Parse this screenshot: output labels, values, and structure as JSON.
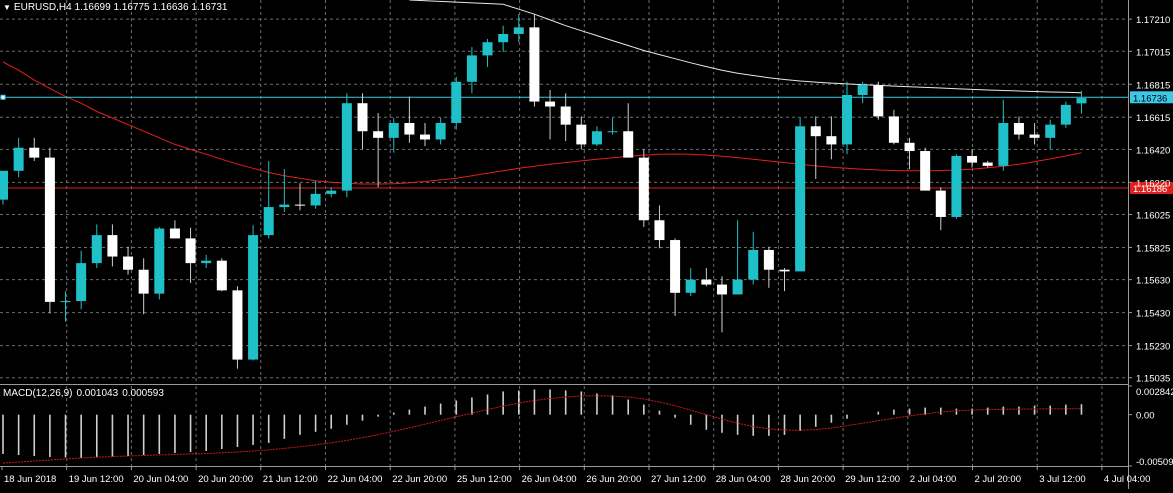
{
  "header": {
    "symbol": "EURUSD,H4",
    "open": "1.16699",
    "high": "1.16775",
    "low": "1.16636",
    "close": "1.16731",
    "menu_icon": "triangle-down-icon"
  },
  "macd_header": {
    "name": "MACD(12,26,9)",
    "main": "0.001043",
    "signal": "0.000593"
  },
  "colors": {
    "background": "#000000",
    "grid": "#6e6e6e",
    "bull": "#20c0c8",
    "bear": "#ffffff",
    "ma_red": "#e0201c",
    "ma_white": "#e8e8e8",
    "hline_cyan": "#3cc8e6",
    "hline_red": "#e0201c",
    "macd_hist": "#cfcfcf",
    "macd_signal": "#d01818"
  },
  "chart_data": {
    "type": "candlestick",
    "symbol": "EURUSD",
    "timeframe": "H4",
    "price_axis_labels": [
      "1.17210",
      "1.17015",
      "1.16815",
      "1.16615",
      "1.16420",
      "1.16220",
      "1.16025",
      "1.15825",
      "1.15630",
      "1.15430",
      "1.15230",
      "1.15035"
    ],
    "price_range": [
      1.15003,
      1.17326
    ],
    "time_axis_labels": [
      "18 Jun 2018",
      "19 Jun 12:00",
      "20 Jun 04:00",
      "20 Jun 20:00",
      "21 Jun 12:00",
      "22 Jun 04:00",
      "22 Jun 20:00",
      "25 Jun 12:00",
      "26 Jun 04:00",
      "26 Jun 20:00",
      "27 Jun 12:00",
      "28 Jun 04:00",
      "28 Jun 20:00",
      "29 Jun 12:00",
      "2 Jul 04:00",
      "2 Jul 20:00",
      "3 Jul 12:00",
      "4 Jul 04:00"
    ],
    "candles": [
      {
        "o": 1.16115,
        "h": 1.1629,
        "l": 1.16085,
        "c": 1.1629
      },
      {
        "o": 1.1629,
        "h": 1.1649,
        "l": 1.1625,
        "c": 1.1643
      },
      {
        "o": 1.1643,
        "h": 1.1649,
        "l": 1.1635,
        "c": 1.1637
      },
      {
        "o": 1.1637,
        "h": 1.1643,
        "l": 1.15425,
        "c": 1.15495
      },
      {
        "o": 1.15495,
        "h": 1.1556,
        "l": 1.15375,
        "c": 1.155
      },
      {
        "o": 1.155,
        "h": 1.15805,
        "l": 1.1545,
        "c": 1.1573
      },
      {
        "o": 1.1573,
        "h": 1.15965,
        "l": 1.157,
        "c": 1.159
      },
      {
        "o": 1.159,
        "h": 1.15965,
        "l": 1.1571,
        "c": 1.1577
      },
      {
        "o": 1.1577,
        "h": 1.1583,
        "l": 1.1566,
        "c": 1.1569
      },
      {
        "o": 1.1569,
        "h": 1.1576,
        "l": 1.1542,
        "c": 1.15545
      },
      {
        "o": 1.15545,
        "h": 1.1595,
        "l": 1.1551,
        "c": 1.1594
      },
      {
        "o": 1.1594,
        "h": 1.1599,
        "l": 1.1588,
        "c": 1.1588
      },
      {
        "o": 1.1588,
        "h": 1.15945,
        "l": 1.1561,
        "c": 1.1573
      },
      {
        "o": 1.1573,
        "h": 1.1578,
        "l": 1.157,
        "c": 1.15745
      },
      {
        "o": 1.15745,
        "h": 1.1576,
        "l": 1.1556,
        "c": 1.15565
      },
      {
        "o": 1.15565,
        "h": 1.1559,
        "l": 1.1509,
        "c": 1.15145
      },
      {
        "o": 1.15145,
        "h": 1.1596,
        "l": 1.1514,
        "c": 1.159
      },
      {
        "o": 1.159,
        "h": 1.1635,
        "l": 1.1588,
        "c": 1.1607
      },
      {
        "o": 1.1607,
        "h": 1.163,
        "l": 1.1604,
        "c": 1.16085
      },
      {
        "o": 1.16085,
        "h": 1.16215,
        "l": 1.1605,
        "c": 1.1608
      },
      {
        "o": 1.1608,
        "h": 1.1623,
        "l": 1.1606,
        "c": 1.1615
      },
      {
        "o": 1.1615,
        "h": 1.1619,
        "l": 1.1613,
        "c": 1.1617
      },
      {
        "o": 1.1617,
        "h": 1.1676,
        "l": 1.1613,
        "c": 1.167
      },
      {
        "o": 1.167,
        "h": 1.1676,
        "l": 1.1642,
        "c": 1.1653
      },
      {
        "o": 1.1653,
        "h": 1.1664,
        "l": 1.1619,
        "c": 1.1649
      },
      {
        "o": 1.1649,
        "h": 1.1661,
        "l": 1.164,
        "c": 1.1658
      },
      {
        "o": 1.1658,
        "h": 1.1674,
        "l": 1.1646,
        "c": 1.1651
      },
      {
        "o": 1.1651,
        "h": 1.1658,
        "l": 1.1644,
        "c": 1.1648
      },
      {
        "o": 1.1648,
        "h": 1.1661,
        "l": 1.1645,
        "c": 1.1658
      },
      {
        "o": 1.1658,
        "h": 1.1686,
        "l": 1.1654,
        "c": 1.1683
      },
      {
        "o": 1.1683,
        "h": 1.1704,
        "l": 1.1676,
        "c": 1.1699
      },
      {
        "o": 1.1699,
        "h": 1.1709,
        "l": 1.1692,
        "c": 1.1707
      },
      {
        "o": 1.1707,
        "h": 1.1717,
        "l": 1.1701,
        "c": 1.1712
      },
      {
        "o": 1.1712,
        "h": 1.1724,
        "l": 1.1707,
        "c": 1.1716
      },
      {
        "o": 1.1716,
        "h": 1.1724,
        "l": 1.1668,
        "c": 1.1671
      },
      {
        "o": 1.1671,
        "h": 1.1678,
        "l": 1.1648,
        "c": 1.1668
      },
      {
        "o": 1.1668,
        "h": 1.1676,
        "l": 1.1647,
        "c": 1.1657
      },
      {
        "o": 1.1657,
        "h": 1.1662,
        "l": 1.1642,
        "c": 1.1645
      },
      {
        "o": 1.1645,
        "h": 1.1656,
        "l": 1.1644,
        "c": 1.1653
      },
      {
        "o": 1.1653,
        "h": 1.1661,
        "l": 1.1651,
        "c": 1.1653
      },
      {
        "o": 1.1653,
        "h": 1.167,
        "l": 1.1637,
        "c": 1.1637
      },
      {
        "o": 1.1637,
        "h": 1.1642,
        "l": 1.1595,
        "c": 1.1599
      },
      {
        "o": 1.1599,
        "h": 1.1608,
        "l": 1.1582,
        "c": 1.1587
      },
      {
        "o": 1.1587,
        "h": 1.1588,
        "l": 1.1541,
        "c": 1.1555
      },
      {
        "o": 1.1555,
        "h": 1.157,
        "l": 1.1553,
        "c": 1.1563
      },
      {
        "o": 1.1563,
        "h": 1.157,
        "l": 1.1559,
        "c": 1.156
      },
      {
        "o": 1.156,
        "h": 1.1565,
        "l": 1.1531,
        "c": 1.1554
      },
      {
        "o": 1.1554,
        "h": 1.1599,
        "l": 1.1554,
        "c": 1.1563
      },
      {
        "o": 1.1563,
        "h": 1.1592,
        "l": 1.156,
        "c": 1.1581
      },
      {
        "o": 1.1581,
        "h": 1.1583,
        "l": 1.1558,
        "c": 1.1569
      },
      {
        "o": 1.1569,
        "h": 1.157,
        "l": 1.1556,
        "c": 1.1568
      },
      {
        "o": 1.1568,
        "h": 1.1661,
        "l": 1.1568,
        "c": 1.1656
      },
      {
        "o": 1.1656,
        "h": 1.1662,
        "l": 1.1624,
        "c": 1.165
      },
      {
        "o": 1.165,
        "h": 1.1662,
        "l": 1.1636,
        "c": 1.1645
      },
      {
        "o": 1.1645,
        "h": 1.1683,
        "l": 1.1639,
        "c": 1.1675
      },
      {
        "o": 1.1675,
        "h": 1.1683,
        "l": 1.167,
        "c": 1.1681
      },
      {
        "o": 1.1681,
        "h": 1.1683,
        "l": 1.166,
        "c": 1.1662
      },
      {
        "o": 1.1662,
        "h": 1.1666,
        "l": 1.1645,
        "c": 1.1646
      },
      {
        "o": 1.1646,
        "h": 1.1649,
        "l": 1.163,
        "c": 1.1641
      },
      {
        "o": 1.1641,
        "h": 1.1643,
        "l": 1.1617,
        "c": 1.1617
      },
      {
        "o": 1.1617,
        "h": 1.1619,
        "l": 1.1593,
        "c": 1.1601
      },
      {
        "o": 1.1601,
        "h": 1.1639,
        "l": 1.16,
        "c": 1.1638
      },
      {
        "o": 1.1638,
        "h": 1.1642,
        "l": 1.1631,
        "c": 1.1634
      },
      {
        "o": 1.1634,
        "h": 1.1635,
        "l": 1.1631,
        "c": 1.1632
      },
      {
        "o": 1.1632,
        "h": 1.1672,
        "l": 1.1629,
        "c": 1.1658
      },
      {
        "o": 1.1658,
        "h": 1.1662,
        "l": 1.1648,
        "c": 1.1651
      },
      {
        "o": 1.1651,
        "h": 1.1658,
        "l": 1.1645,
        "c": 1.1649
      },
      {
        "o": 1.1649,
        "h": 1.166,
        "l": 1.1642,
        "c": 1.1657
      },
      {
        "o": 1.1657,
        "h": 1.1671,
        "l": 1.1655,
        "c": 1.1669
      },
      {
        "o": 1.16699,
        "h": 1.16775,
        "l": 1.16636,
        "c": 1.16731
      }
    ],
    "moving_average_red": [
      1.1695,
      1.169,
      1.1684,
      1.1679,
      1.1674,
      1.167,
      1.1665,
      1.1661,
      1.1657,
      1.1653,
      1.1649,
      1.1645,
      1.1642,
      1.1639,
      1.1636,
      1.1633,
      1.16305,
      1.1628,
      1.1626,
      1.16245,
      1.1623,
      1.1622,
      1.16215,
      1.1621,
      1.1621,
      1.16212,
      1.16218,
      1.16225,
      1.16235,
      1.16245,
      1.1626,
      1.16275,
      1.1629,
      1.16305,
      1.16318,
      1.1633,
      1.1634,
      1.1635,
      1.1636,
      1.16368,
      1.16378,
      1.16385,
      1.1639,
      1.16392,
      1.1639,
      1.16385,
      1.16378,
      1.1637,
      1.1636,
      1.1635,
      1.1634,
      1.1633,
      1.1632,
      1.16312,
      1.16305,
      1.163,
      1.16295,
      1.16292,
      1.1629,
      1.1629,
      1.16292,
      1.16295,
      1.163,
      1.16308,
      1.16318,
      1.1633,
      1.16345,
      1.16362,
      1.1638,
      1.164
    ],
    "moving_average_white": [
      null,
      null,
      null,
      null,
      null,
      null,
      null,
      null,
      null,
      null,
      null,
      null,
      null,
      null,
      null,
      null,
      null,
      null,
      null,
      null,
      null,
      null,
      null,
      null,
      null,
      null,
      null,
      null,
      null,
      null,
      null,
      null,
      1.173,
      1.1727,
      1.1724,
      1.17205,
      1.1717,
      1.1714,
      1.1711,
      1.1708,
      1.1705,
      1.1702,
      1.16995,
      1.1697,
      1.16945,
      1.16922,
      1.169,
      1.16882,
      1.16868,
      1.16855,
      1.16844,
      1.16835,
      1.16828,
      1.16822,
      1.16817,
      1.16812,
      1.16808,
      1.16804,
      1.168,
      1.16796,
      1.16792,
      1.16788,
      1.16784,
      1.1678,
      1.16777,
      1.16774,
      1.16771,
      1.16768,
      1.16766,
      1.16764
    ],
    "hline_cyan": {
      "price": 1.16736,
      "label": "1.16736"
    },
    "hline_red": {
      "price": 1.16186,
      "label": "1.16186"
    },
    "macd": {
      "axis_labels": [
        "0.002842",
        "0.00",
        "-0.005092"
      ],
      "range": [
        -0.005092,
        0.002842
      ],
      "histogram": [
        -0.0039,
        -0.004,
        -0.0041,
        -0.0042,
        -0.00425,
        -0.0043,
        -0.00425,
        -0.0042,
        -0.0041,
        -0.004,
        -0.0039,
        -0.0038,
        -0.0037,
        -0.0036,
        -0.0034,
        -0.0032,
        -0.003,
        -0.0028,
        -0.0024,
        -0.002,
        -0.0017,
        -0.0014,
        -0.001,
        -0.0006,
        -0.0002,
        0.0002,
        0.0005,
        0.0008,
        0.0011,
        0.0014,
        0.0017,
        0.002,
        0.0023,
        0.0024,
        0.0025,
        0.0025,
        0.0024,
        0.0023,
        0.0021,
        0.0019,
        0.0015,
        0.001,
        0.0004,
        -0.0003,
        -0.001,
        -0.0015,
        -0.0018,
        -0.002,
        -0.0021,
        -0.0021,
        -0.002,
        -0.0016,
        -0.0012,
        -0.0008,
        -0.0004,
        0.0,
        0.0003,
        0.0005,
        0.0006,
        0.0007,
        0.0007,
        0.0006,
        0.0006,
        0.0007,
        0.0008,
        0.0008,
        0.0009,
        0.0009,
        0.001,
        0.00104
      ],
      "signal": [
        -0.0048,
        -0.0047,
        -0.0046,
        -0.0045,
        -0.0044,
        -0.0043,
        -0.00422,
        -0.00415,
        -0.0041,
        -0.00405,
        -0.004,
        -0.00395,
        -0.0039,
        -0.00385,
        -0.00378,
        -0.0037,
        -0.0036,
        -0.0035,
        -0.00335,
        -0.00318,
        -0.003,
        -0.0028,
        -0.00255,
        -0.00228,
        -0.00198,
        -0.00165,
        -0.0013,
        -0.00095,
        -0.00058,
        -0.0002,
        0.00015,
        0.0005,
        0.00085,
        0.00115,
        0.0014,
        0.0016,
        0.00175,
        0.00185,
        0.00188,
        0.00185,
        0.00175,
        0.00155,
        0.00125,
        0.00088,
        0.00045,
        0.0,
        -0.00045,
        -0.00085,
        -0.00118,
        -0.0014,
        -0.00152,
        -0.00155,
        -0.00148,
        -0.00132,
        -0.0011,
        -0.00085,
        -0.0006,
        -0.00035,
        -0.00012,
        8e-05,
        0.00025,
        0.00037,
        0.00045,
        0.0005,
        0.00053,
        0.00055,
        0.00056,
        0.00057,
        0.00058,
        0.00059
      ]
    }
  }
}
